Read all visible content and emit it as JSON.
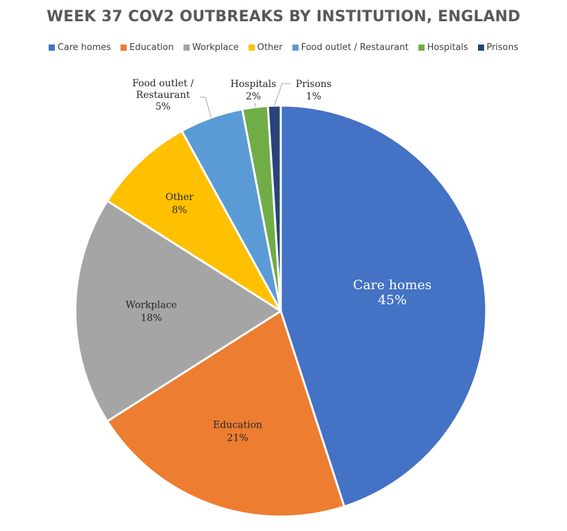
{
  "chart_data": {
    "type": "pie",
    "title": "WEEK 37 COV2 OUTBREAKS BY INSTITUTION, ENGLAND",
    "legend_position": "top",
    "slices": [
      {
        "name": "Care homes",
        "value": 45,
        "label": "45%",
        "color": "#4472C4"
      },
      {
        "name": "Education",
        "value": 21,
        "label": "21%",
        "color": "#ED7D31"
      },
      {
        "name": "Workplace",
        "value": 18,
        "label": "18%",
        "color": "#A5A5A5"
      },
      {
        "name": "Other",
        "value": 8,
        "label": "8%",
        "color": "#FFC000"
      },
      {
        "name": "Food outlet / Restaurant",
        "value": 5,
        "label": "5%",
        "color": "#5B9BD5"
      },
      {
        "name": "Hospitals",
        "value": 2,
        "label": "2%",
        "color": "#70AD47"
      },
      {
        "name": "Prisons",
        "value": 1,
        "label": "1%",
        "color": "#264478"
      }
    ],
    "callout_labels": {
      "food_line1": "Food outlet /",
      "food_line2": "Restaurant"
    }
  }
}
